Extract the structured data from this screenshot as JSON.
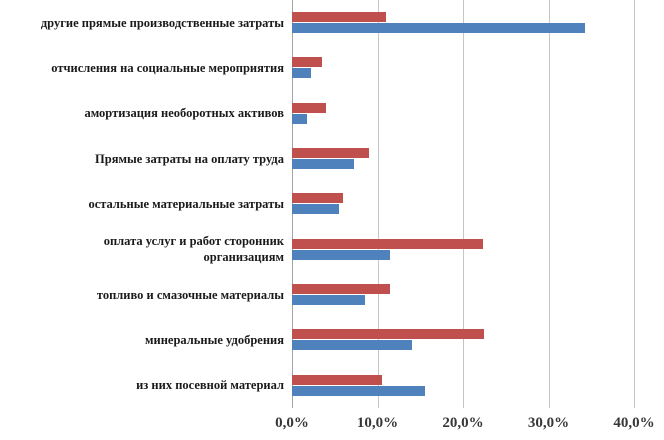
{
  "chart_data": {
    "type": "bar",
    "orientation": "horizontal",
    "title": "",
    "xlabel": "",
    "ylabel": "",
    "xlim": [
      0,
      40
    ],
    "x_ticks": [
      "0,0%",
      "10,0%",
      "20,0%",
      "30,0%",
      "40,0%"
    ],
    "grid": true,
    "legend": "none",
    "gridline_color": "#c6c6c6",
    "categories": [
      "другие прямые производственные затраты",
      "отчисления на социальные мероприятия",
      "амортизация необоротных активов",
      "Прямые затраты на оплату труда",
      "остальные материальные затраты",
      "оплата услуг и работ сторонник\nорганизациям",
      "топливо и смазочные материалы",
      "минеральные удобрения",
      "из них посевной материал"
    ],
    "series": [
      {
        "name": "series-red",
        "color": "#c0504d",
        "values": [
          11.0,
          3.5,
          4.0,
          9.0,
          6.0,
          22.3,
          11.5,
          22.5,
          10.5
        ]
      },
      {
        "name": "series-blue",
        "color": "#4f81bd",
        "values": [
          34.3,
          2.2,
          1.8,
          7.2,
          5.5,
          11.5,
          8.5,
          14.0,
          15.5
        ]
      }
    ]
  }
}
